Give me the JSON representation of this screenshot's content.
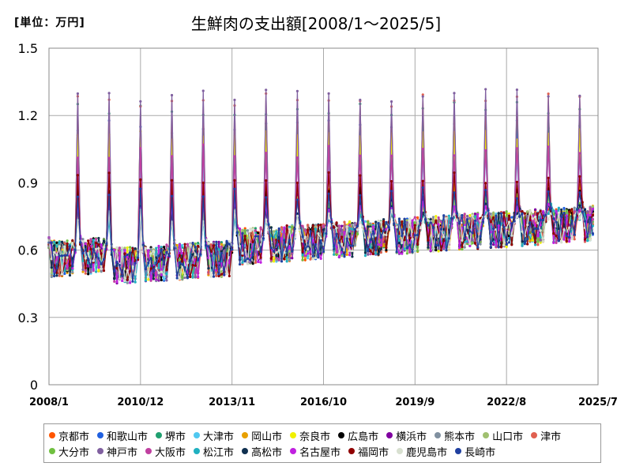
{
  "unit_label": "[単位：万円]",
  "title": "生鮮肉の支出額[2008/1～2025/5]",
  "chart_data": {
    "type": "line",
    "title": "生鮮肉の支出額[2008/1～2025/5]",
    "ylabel": "",
    "xlabel": "",
    "ylim": [
      0,
      1.5
    ],
    "yticks": [
      0,
      0.3,
      0.6,
      0.9,
      1.2,
      1.5
    ],
    "ytick_labels": [
      "0",
      "0.3",
      "0.6",
      "0.9",
      "1.2",
      "1.5"
    ],
    "xlim": [
      "2008-01",
      "2025-07"
    ],
    "xticks": [
      "2008-01",
      "2010-12",
      "2013-11",
      "2016-10",
      "2019-09",
      "2022-08",
      "2025-07"
    ],
    "xtick_labels": [
      "2008/1",
      "2010/12",
      "2013/11",
      "2016/10",
      "2019/9",
      "2022/8",
      "2025/7"
    ],
    "grid": true,
    "legend_position": "bottom",
    "series": [
      {
        "name": "京都市",
        "color": "#ff5500",
        "december_peak": 0.82
      },
      {
        "name": "和歌山市",
        "color": "#2060e0",
        "december_peak": 1.18
      },
      {
        "name": "堺市",
        "color": "#20a070",
        "december_peak": 1.26
      },
      {
        "name": "大津市",
        "color": "#50c8f0",
        "december_peak": 1.05
      },
      {
        "name": "岡山市",
        "color": "#e8a000",
        "december_peak": 0.9
      },
      {
        "name": "奈良市",
        "color": "#f0f000",
        "december_peak": 1.14
      },
      {
        "name": "広島市",
        "color": "#000000",
        "december_peak": 0.88
      },
      {
        "name": "横浜市",
        "color": "#8000a0",
        "december_peak": 0.85
      },
      {
        "name": "熊本市",
        "color": "#8090a0",
        "december_peak": 0.8
      },
      {
        "name": "山口市",
        "color": "#a0c070",
        "december_peak": 0.84
      },
      {
        "name": "津市",
        "color": "#e06050",
        "december_peak": 1.3
      },
      {
        "name": "大分市",
        "color": "#70c040",
        "december_peak": 0.86
      },
      {
        "name": "神戸市",
        "color": "#8060a0",
        "december_peak": 1.32
      },
      {
        "name": "大阪市",
        "color": "#c040a0",
        "december_peak": 1.07
      },
      {
        "name": "松江市",
        "color": "#20b0c0",
        "december_peak": 0.78
      },
      {
        "name": "高松市",
        "color": "#103050",
        "december_peak": 0.82
      },
      {
        "name": "名古屋市",
        "color": "#c020e0",
        "december_peak": 0.83
      },
      {
        "name": "福岡市",
        "color": "#900000",
        "december_peak": 0.95
      },
      {
        "name": "鹿児島市",
        "color": "#d8e0d0",
        "december_peak": 0.78
      },
      {
        "name": "長崎市",
        "color": "#2040a0",
        "december_peak": 0.88
      }
    ]
  }
}
